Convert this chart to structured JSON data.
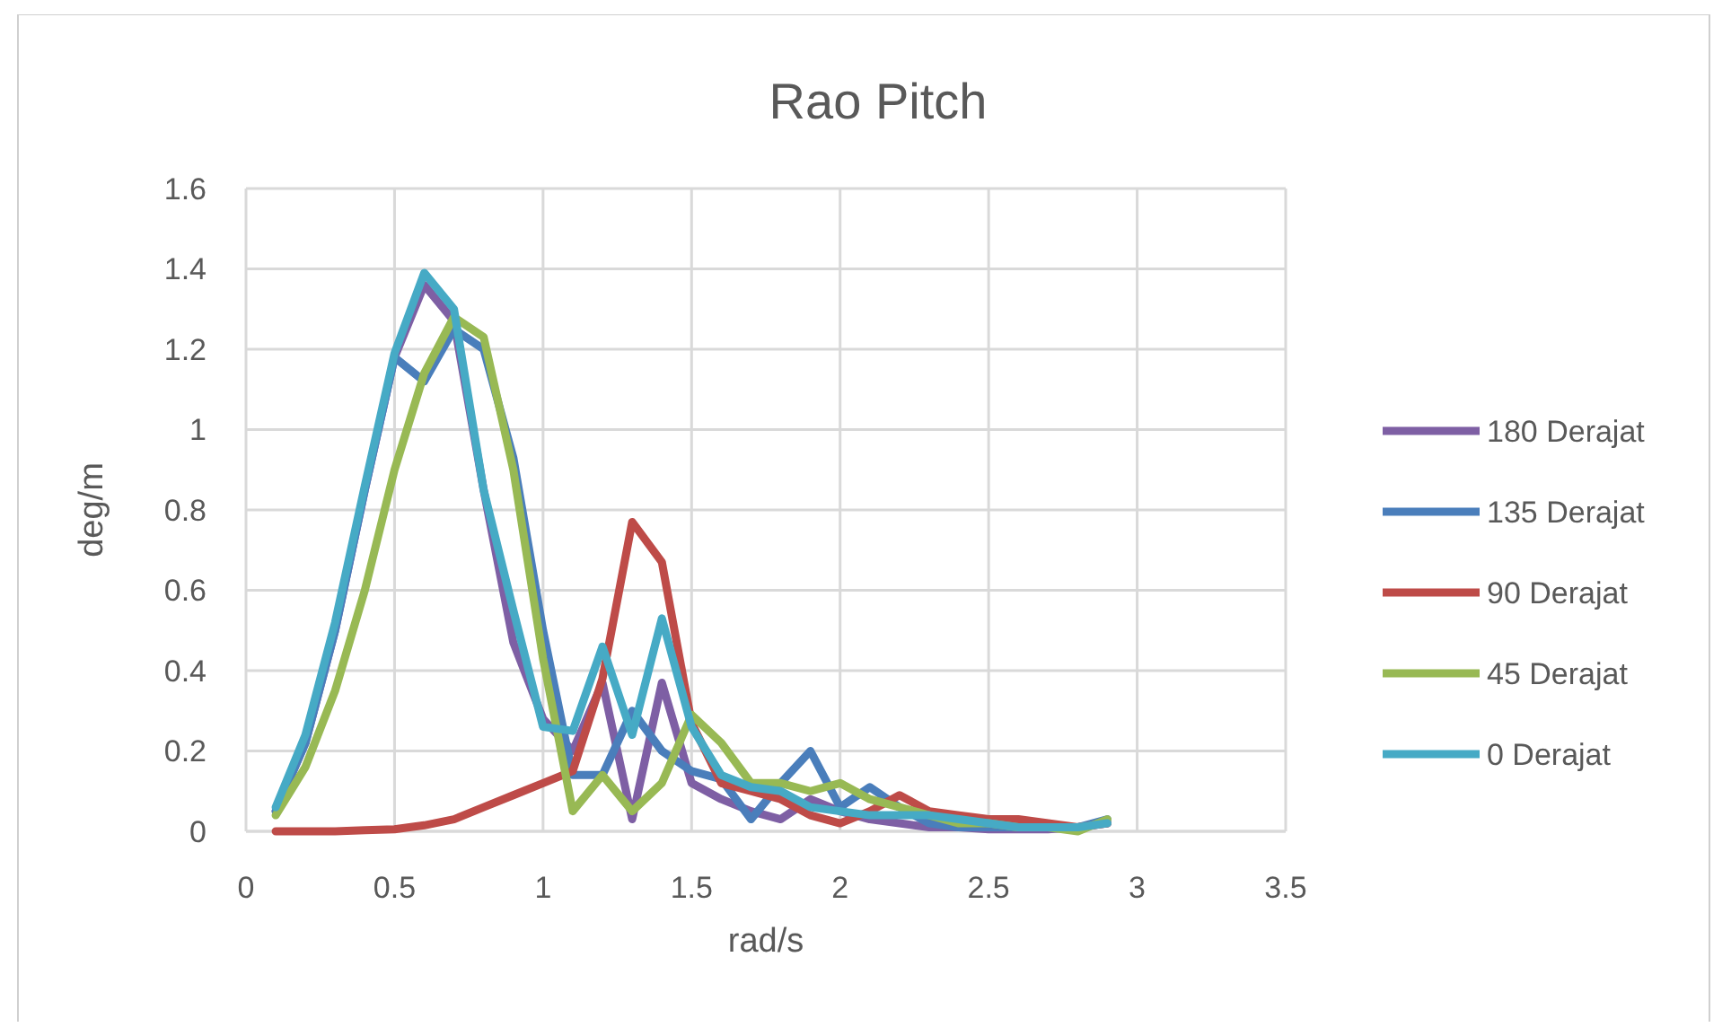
{
  "chart_data": {
    "type": "line",
    "title": "Rao Pitch",
    "xlabel": "rad/s",
    "ylabel": "deg/m",
    "x": [
      0.1,
      0.2,
      0.3,
      0.4,
      0.5,
      0.6,
      0.7,
      0.8,
      0.9,
      1.0,
      1.1,
      1.2,
      1.3,
      1.4,
      1.5,
      1.6,
      1.7,
      1.8,
      1.9,
      2.0,
      2.1,
      2.2,
      2.3,
      2.4,
      2.5,
      2.6,
      2.7,
      2.8,
      2.9
    ],
    "xlim": [
      0,
      3.5
    ],
    "xticks": [
      0,
      0.5,
      1,
      1.5,
      2,
      2.5,
      3,
      3.5
    ],
    "ylim": [
      0,
      1.6
    ],
    "yticks": [
      0,
      0.2,
      0.4,
      0.6,
      0.8,
      1,
      1.2,
      1.4,
      1.6
    ],
    "grid": true,
    "legend": "right",
    "marker": "none",
    "series": [
      {
        "name": "180 Derajat",
        "color": "#7e5fa4",
        "values": [
          0.05,
          0.22,
          0.5,
          0.85,
          1.18,
          1.36,
          1.27,
          0.85,
          0.47,
          0.28,
          0.2,
          0.37,
          0.03,
          0.37,
          0.12,
          0.08,
          0.05,
          0.03,
          0.08,
          0.05,
          0.03,
          0.02,
          0.01,
          0.01,
          0.005,
          0.005,
          0.005,
          0.01,
          0.02
        ]
      },
      {
        "name": "135 Derajat",
        "color": "#4a7ebb",
        "values": [
          0.05,
          0.22,
          0.5,
          0.85,
          1.18,
          1.12,
          1.25,
          1.2,
          0.93,
          0.5,
          0.14,
          0.14,
          0.3,
          0.2,
          0.15,
          0.13,
          0.03,
          0.12,
          0.2,
          0.06,
          0.11,
          0.06,
          0.02,
          0.01,
          0.01,
          0.01,
          0.01,
          0.01,
          0.03
        ]
      },
      {
        "name": "90 Derajat",
        "color": "#be4b48",
        "values": [
          0,
          0,
          0,
          0.003,
          0.005,
          0.015,
          0.03,
          0.06,
          0.09,
          0.12,
          0.15,
          0.38,
          0.77,
          0.67,
          0.27,
          0.12,
          0.1,
          0.08,
          0.04,
          0.02,
          0.05,
          0.09,
          0.05,
          0.04,
          0.03,
          0.03,
          0.02,
          0.01,
          0.02
        ]
      },
      {
        "name": "45 Derajat",
        "color": "#98b954",
        "values": [
          0.04,
          0.16,
          0.35,
          0.6,
          0.9,
          1.14,
          1.28,
          1.23,
          0.9,
          0.43,
          0.05,
          0.14,
          0.05,
          0.12,
          0.29,
          0.22,
          0.12,
          0.12,
          0.1,
          0.12,
          0.08,
          0.06,
          0.04,
          0.02,
          0.02,
          0.01,
          0.01,
          0.0,
          0.03
        ]
      },
      {
        "name": "0 Derajat",
        "color": "#46aac5",
        "values": [
          0.06,
          0.24,
          0.52,
          0.86,
          1.19,
          1.39,
          1.3,
          0.85,
          0.55,
          0.26,
          0.25,
          0.46,
          0.24,
          0.53,
          0.26,
          0.14,
          0.11,
          0.1,
          0.06,
          0.05,
          0.04,
          0.04,
          0.04,
          0.03,
          0.02,
          0.01,
          0.01,
          0.01,
          0.02
        ]
      }
    ]
  }
}
